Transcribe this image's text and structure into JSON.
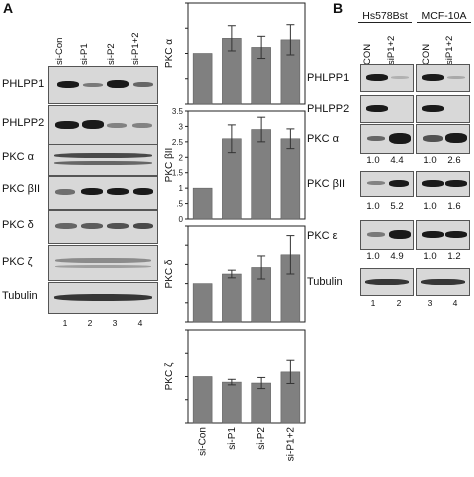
{
  "panel_a": {
    "letter": "A",
    "lanes": [
      "si-Con",
      "si-P1",
      "si-P2",
      "si-P1+2"
    ],
    "lane_numbers": [
      "1",
      "2",
      "3",
      "4"
    ],
    "blots": [
      "PHLPP1",
      "PHLPP2",
      "PKC α",
      "PKC βII",
      "PKC δ",
      "PKC ζ",
      "Tubulin"
    ]
  },
  "panel_b": {
    "letter": "B",
    "groups": [
      "Hs578Bst",
      "MCF-10A"
    ],
    "lanes": [
      "CON",
      "siP1+2",
      "CON",
      "siP1+2"
    ],
    "lane_numbers": [
      "1",
      "2",
      "3",
      "4"
    ],
    "blots": [
      "PHLPP1",
      "PHLPP2",
      "PKC α",
      "PKC βII",
      "PKC ε",
      "Tubulin"
    ],
    "quant": {
      "pkc_alpha": [
        "1.0",
        "4.4",
        "1.0",
        "2.6"
      ],
      "pkc_beta": [
        "1.0",
        "5.2",
        "1.0",
        "1.6"
      ],
      "pkc_eps": [
        "1.0",
        "4.9",
        "1.0",
        "1.2"
      ]
    }
  },
  "chart_data": [
    {
      "type": "bar",
      "ylabel": "PKC α",
      "categories": [
        "si-Con",
        "si-P1",
        "si-P2",
        "si-P1+2"
      ],
      "values": [
        1.0,
        1.3,
        1.12,
        1.27
      ],
      "errors": [
        0,
        0.25,
        0.22,
        0.3
      ],
      "ylim": [
        0,
        2
      ],
      "ticks": [
        0,
        0.5,
        1,
        1.5,
        2
      ],
      "tick_labels": [
        "",
        "",
        "",
        "",
        ""
      ]
    },
    {
      "type": "bar",
      "ylabel": "PKC βII",
      "categories": [
        "si-Con",
        "si-P1",
        "si-P2",
        "si-P1+2"
      ],
      "values": [
        1.0,
        2.6,
        2.9,
        2.6
      ],
      "errors": [
        0,
        0.45,
        0.4,
        0.32
      ],
      "ylim": [
        0,
        3.5
      ],
      "ticks": [
        0,
        0.5,
        1,
        1.5,
        2,
        2.5,
        3,
        3.5
      ],
      "tick_labels": [
        "0",
        ".5",
        "1",
        "1.5",
        "2",
        "2.5",
        "3",
        "3.5"
      ]
    },
    {
      "type": "bar",
      "ylabel": "PKC δ",
      "categories": [
        "si-Con",
        "si-P1",
        "si-P2",
        "si-P1+2"
      ],
      "values": [
        1.0,
        1.25,
        1.42,
        1.75
      ],
      "errors": [
        0,
        0.1,
        0.3,
        0.5
      ],
      "ylim": [
        0,
        2.5
      ],
      "ticks": [
        0,
        0.5,
        1,
        1.5,
        2,
        2.5
      ],
      "tick_labels": [
        "",
        "",
        "",
        "",
        "",
        ""
      ]
    },
    {
      "type": "bar",
      "ylabel": "PKC ζ",
      "categories": [
        "si-Con",
        "si-P1",
        "si-P2",
        "si-P1+2"
      ],
      "values": [
        1.0,
        0.88,
        0.86,
        1.1
      ],
      "errors": [
        0,
        0.06,
        0.12,
        0.25
      ],
      "ylim": [
        0,
        2
      ],
      "ticks": [
        0,
        0.5,
        1,
        1.5,
        2
      ],
      "tick_labels": [
        "",
        "",
        "",
        "",
        ""
      ]
    }
  ]
}
